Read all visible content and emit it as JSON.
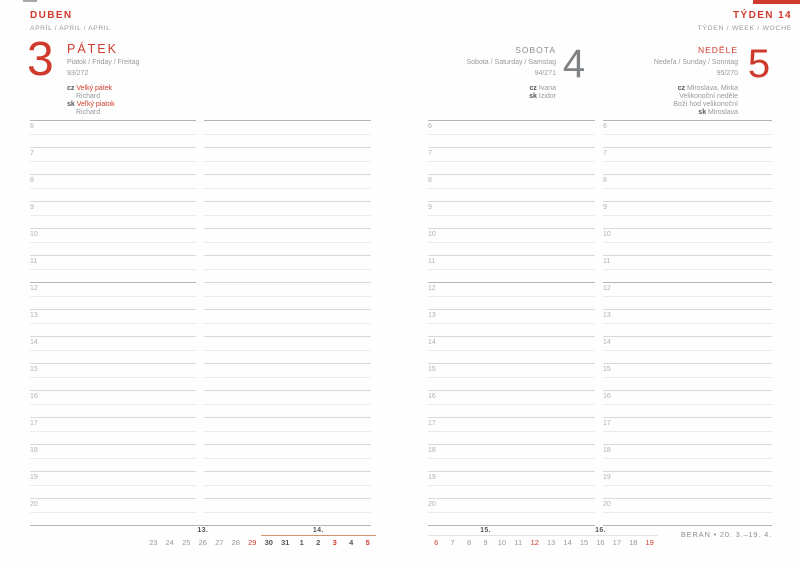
{
  "colors": {
    "accent": "#cf3a2c",
    "num_gray": "#7f8285",
    "caps_gray": "#8b8e91",
    "text_gray": "#97999c",
    "dark_gray": "#55575a",
    "hour_label": "#aeb0b2",
    "line": "#d8d9da",
    "line_half": "#eaebeb",
    "line_strong": "#b4b5b7",
    "cal_gray": "#98999b",
    "week_line_current": "#d79070",
    "week_line_other": "#e3e3e3"
  },
  "header": {
    "month_cz": "DUBEN",
    "month_sub": "APRÍL / APRIL / APRIL",
    "week_cz": "TÝDEN 14",
    "week_sub": "TÝDEN / WEEK / WOCHE"
  },
  "days": [
    {
      "number": "3",
      "name": "PÁTEK",
      "sub": "Piatok / Friday / Freitag",
      "day_of_year": "93/272",
      "notes": [
        {
          "prefix": "cz",
          "text": "Velký pátek",
          "style": "red"
        },
        {
          "text": "Richard",
          "style": "gray",
          "indent": true
        },
        {
          "prefix": "sk",
          "text": "Veľký piatok",
          "style": "red"
        },
        {
          "text": "Richard",
          "style": "gray",
          "indent": true
        }
      ]
    },
    {
      "number": "4",
      "name": "SOBOTA",
      "sub": "Sobota / Saturday / Samstag",
      "day_of_year": "94/271",
      "notes": [
        {
          "prefix": "cz",
          "text": "Ivana",
          "style": "gray"
        },
        {
          "prefix": "sk",
          "text": "Izidor",
          "style": "gray"
        }
      ]
    },
    {
      "number": "5",
      "name": "NEDĚLE",
      "sub": "Nedeľa / Sunday / Sonntag",
      "day_of_year": "95/270",
      "notes": [
        {
          "prefix": "cz",
          "text": "Miroslava, Mirka",
          "style": "gray"
        },
        {
          "text": "Velikonoční neděle",
          "style": "gray"
        },
        {
          "text": "Boží hod velikonoční",
          "style": "gray"
        },
        {
          "prefix": "sk",
          "text": "Miroslava",
          "style": "gray"
        }
      ]
    }
  ],
  "schedule": {
    "hours": [
      "6",
      "7",
      "8",
      "9",
      "10",
      "11",
      "12",
      "13",
      "14",
      "15",
      "16",
      "17",
      "18",
      "19",
      "20"
    ],
    "noon": "12"
  },
  "mini_calendar": {
    "left": {
      "labels": [
        {
          "text": "13.",
          "at": 3
        },
        {
          "text": "14.",
          "at": 10
        }
      ],
      "lines": [
        {
          "from": 7,
          "to": 14,
          "color_key": "week_line_current"
        }
      ],
      "cells": [
        {
          "t": "23",
          "s": "gray"
        },
        {
          "t": "24",
          "s": "gray"
        },
        {
          "t": "25",
          "s": "gray"
        },
        {
          "t": "26",
          "s": "gray"
        },
        {
          "t": "27",
          "s": "gray"
        },
        {
          "t": "28",
          "s": "gray"
        },
        {
          "t": "29",
          "s": "red"
        },
        {
          "t": "30",
          "s": "dark"
        },
        {
          "t": "31",
          "s": "dark"
        },
        {
          "t": "1",
          "s": "dark"
        },
        {
          "t": "2",
          "s": "dark"
        },
        {
          "t": "3",
          "s": "redbold"
        },
        {
          "t": "4",
          "s": "dark"
        },
        {
          "t": "5",
          "s": "redbold"
        }
      ]
    },
    "right": {
      "labels": [
        {
          "text": "15.",
          "at": 3
        },
        {
          "text": "16.",
          "at": 10
        }
      ],
      "lines": [
        {
          "from": 0,
          "to": 14,
          "color_key": "week_line_other"
        }
      ],
      "cells": [
        {
          "t": "6",
          "s": "red"
        },
        {
          "t": "7",
          "s": "gray"
        },
        {
          "t": "8",
          "s": "gray"
        },
        {
          "t": "9",
          "s": "gray"
        },
        {
          "t": "10",
          "s": "gray"
        },
        {
          "t": "11",
          "s": "gray"
        },
        {
          "t": "12",
          "s": "red"
        },
        {
          "t": "13",
          "s": "gray"
        },
        {
          "t": "14",
          "s": "gray"
        },
        {
          "t": "15",
          "s": "gray"
        },
        {
          "t": "16",
          "s": "gray"
        },
        {
          "t": "17",
          "s": "gray"
        },
        {
          "t": "18",
          "s": "gray"
        },
        {
          "t": "19",
          "s": "red"
        }
      ]
    }
  },
  "zodiac": "BERAN • 20. 3.–19. 4."
}
